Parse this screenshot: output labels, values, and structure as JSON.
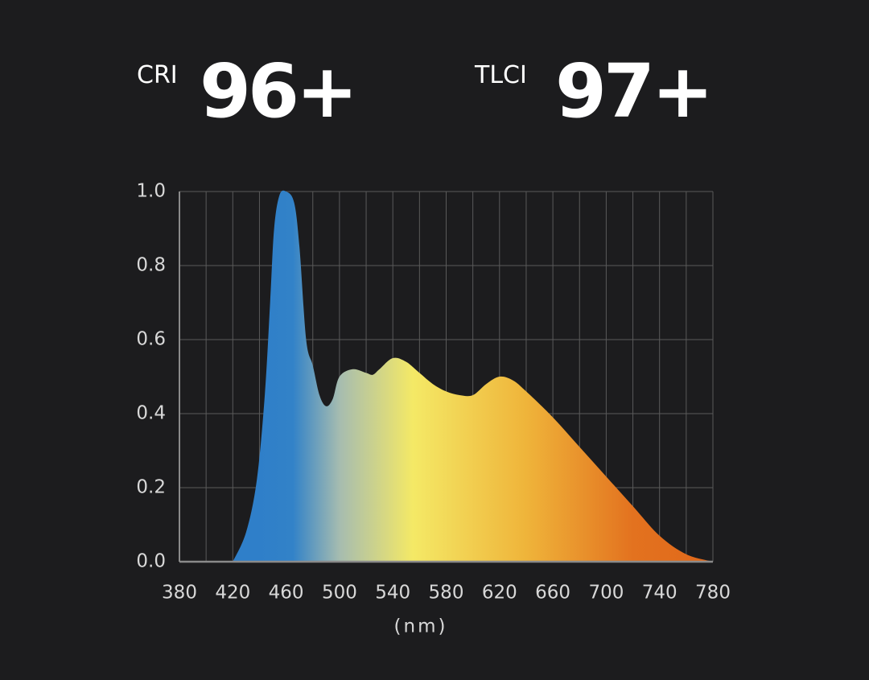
{
  "chart_data": {
    "type": "area",
    "annotations": [
      {
        "label": "CRI",
        "value": "96+"
      },
      {
        "label": "TLCI",
        "value": "97+"
      }
    ],
    "xlabel": "(nm)",
    "x": [
      420,
      430,
      438,
      444,
      448,
      451,
      455,
      460,
      466,
      470,
      475,
      480,
      485,
      490,
      495,
      500,
      510,
      520,
      525,
      530,
      540,
      550,
      560,
      570,
      580,
      590,
      600,
      610,
      620,
      630,
      640,
      660,
      680,
      700,
      720,
      740,
      760,
      780
    ],
    "values": [
      0,
      0.08,
      0.22,
      0.45,
      0.7,
      0.9,
      0.99,
      1.0,
      0.97,
      0.85,
      0.6,
      0.53,
      0.45,
      0.42,
      0.44,
      0.5,
      0.52,
      0.51,
      0.505,
      0.52,
      0.55,
      0.54,
      0.51,
      0.48,
      0.46,
      0.45,
      0.45,
      0.48,
      0.5,
      0.49,
      0.46,
      0.39,
      0.31,
      0.23,
      0.15,
      0.07,
      0.02,
      0
    ],
    "color_stops": [
      {
        "x": 440,
        "color": "#2f7fc9"
      },
      {
        "x": 465,
        "color": "#3282c8"
      },
      {
        "x": 500,
        "color": "#a6bcb0"
      },
      {
        "x": 555,
        "color": "#f4e966"
      },
      {
        "x": 640,
        "color": "#efb43a"
      },
      {
        "x": 720,
        "color": "#e3721f"
      },
      {
        "x": 780,
        "color": "#e0681a"
      }
    ],
    "xlim": [
      380,
      780
    ],
    "ylim": [
      0,
      1
    ],
    "xticks": [
      380,
      420,
      460,
      500,
      540,
      580,
      620,
      660,
      700,
      740,
      780
    ],
    "xminorticks": [
      400,
      440,
      480,
      520,
      560,
      600,
      640,
      680,
      720,
      760
    ],
    "yticks": [
      {
        "value": 0,
        "label": "0.0"
      },
      0.2,
      0.4,
      0.6,
      0.8,
      {
        "value": 1,
        "label": "1.0"
      }
    ],
    "grid": true
  }
}
